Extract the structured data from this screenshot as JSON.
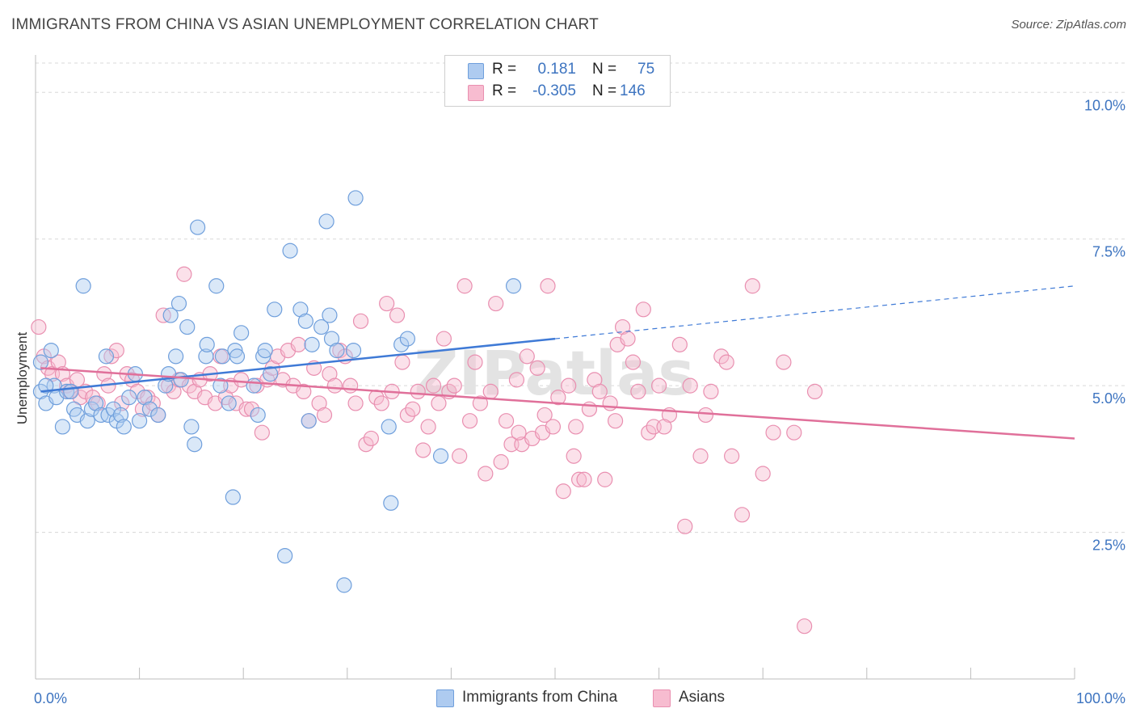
{
  "title": "IMMIGRANTS FROM CHINA VS ASIAN UNEMPLOYMENT CORRELATION CHART",
  "source": "Source: ZipAtlas.com",
  "watermark": "ZIPatlas",
  "legend": {
    "r_label": "R =",
    "n_label": "N =",
    "rows": [
      {
        "r": "0.181",
        "n": "75"
      },
      {
        "r": "-0.305",
        "n": "146"
      }
    ]
  },
  "colors": {
    "china_fill": "#aecbf0",
    "china_stroke": "#6f9fdc",
    "china_line": "#3f7ad6",
    "asian_fill": "#f7bcd0",
    "asian_stroke": "#e98fb0",
    "asian_line": "#e0709a",
    "grid": "#d8d8d8",
    "tick_label": "#3d74c0"
  },
  "chart_data": {
    "type": "scatter",
    "title": "IMMIGRANTS FROM CHINA VS ASIAN UNEMPLOYMENT CORRELATION CHART",
    "xlabel": "",
    "ylabel": "Unemployment",
    "xlim": [
      0,
      100
    ],
    "ylim": [
      0,
      10.5
    ],
    "x_tick_labels": [
      "0.0%",
      "100.0%"
    ],
    "y_ticks": [
      2.5,
      5.0,
      7.5,
      10.0
    ],
    "y_tick_labels": [
      "2.5%",
      "5.0%",
      "7.5%",
      "10.0%"
    ],
    "grid": "horizontal dashed",
    "legend_position": "bottom",
    "series": [
      {
        "name": "Immigrants from China",
        "trend": {
          "x0": 0.5,
          "y0": 4.9,
          "x1": 50,
          "y1": 5.8,
          "dashed_to_x": 100,
          "dashed_to_y": 6.7
        },
        "points": [
          [
            0.5,
            5.4
          ],
          [
            0.5,
            4.9
          ],
          [
            1.0,
            4.7
          ],
          [
            1.5,
            5.6
          ],
          [
            1.8,
            5.0
          ],
          [
            2.0,
            4.8
          ],
          [
            2.6,
            4.3
          ],
          [
            3.0,
            4.9
          ],
          [
            3.4,
            4.9
          ],
          [
            3.7,
            4.6
          ],
          [
            4.0,
            4.5
          ],
          [
            4.6,
            6.7
          ],
          [
            5.0,
            4.4
          ],
          [
            5.4,
            4.6
          ],
          [
            5.8,
            4.7
          ],
          [
            6.3,
            4.5
          ],
          [
            6.8,
            5.5
          ],
          [
            7.0,
            4.5
          ],
          [
            7.5,
            4.6
          ],
          [
            7.8,
            4.4
          ],
          [
            8.2,
            4.5
          ],
          [
            8.5,
            4.3
          ],
          [
            9.0,
            4.8
          ],
          [
            9.6,
            5.2
          ],
          [
            10.0,
            4.4
          ],
          [
            10.5,
            4.8
          ],
          [
            11.0,
            4.6
          ],
          [
            11.8,
            4.5
          ],
          [
            12.5,
            5.0
          ],
          [
            12.8,
            5.2
          ],
          [
            13.0,
            6.2
          ],
          [
            13.5,
            5.5
          ],
          [
            13.8,
            6.4
          ],
          [
            14.0,
            5.1
          ],
          [
            14.6,
            6.0
          ],
          [
            15.0,
            4.3
          ],
          [
            15.3,
            4.0
          ],
          [
            15.6,
            7.7
          ],
          [
            16.4,
            5.5
          ],
          [
            16.5,
            5.7
          ],
          [
            17.4,
            6.7
          ],
          [
            17.8,
            5.0
          ],
          [
            18.0,
            5.5
          ],
          [
            18.6,
            4.7
          ],
          [
            19.0,
            3.1
          ],
          [
            19.2,
            5.6
          ],
          [
            19.4,
            5.5
          ],
          [
            19.8,
            5.9
          ],
          [
            21.0,
            5.0
          ],
          [
            21.4,
            4.5
          ],
          [
            21.9,
            5.5
          ],
          [
            22.1,
            5.6
          ],
          [
            22.6,
            5.2
          ],
          [
            23.0,
            6.3
          ],
          [
            24.0,
            2.1
          ],
          [
            24.5,
            7.3
          ],
          [
            25.5,
            6.3
          ],
          [
            26.0,
            6.1
          ],
          [
            26.3,
            4.4
          ],
          [
            26.6,
            5.7
          ],
          [
            27.5,
            6.0
          ],
          [
            28.0,
            7.8
          ],
          [
            28.3,
            6.2
          ],
          [
            28.5,
            5.8
          ],
          [
            29.0,
            5.6
          ],
          [
            29.7,
            1.6
          ],
          [
            30.6,
            5.6
          ],
          [
            30.8,
            8.2
          ],
          [
            34.0,
            4.3
          ],
          [
            34.2,
            3.0
          ],
          [
            35.2,
            5.7
          ],
          [
            35.8,
            5.8
          ],
          [
            39.0,
            3.8
          ],
          [
            46.0,
            6.7
          ],
          [
            1.0,
            5.0
          ]
        ]
      },
      {
        "name": "Asians",
        "trend": {
          "x0": 0.5,
          "y0": 5.3,
          "x1": 100,
          "y1": 4.1
        },
        "points": [
          [
            0.3,
            6.0
          ],
          [
            0.8,
            5.5
          ],
          [
            1.2,
            5.3
          ],
          [
            1.6,
            5.2
          ],
          [
            2.2,
            5.4
          ],
          [
            2.6,
            5.2
          ],
          [
            3.0,
            5.0
          ],
          [
            3.3,
            4.9
          ],
          [
            4.0,
            5.1
          ],
          [
            4.3,
            4.8
          ],
          [
            4.8,
            4.9
          ],
          [
            5.5,
            4.8
          ],
          [
            6.0,
            4.7
          ],
          [
            6.6,
            5.2
          ],
          [
            7.0,
            5.0
          ],
          [
            7.3,
            5.5
          ],
          [
            7.8,
            5.6
          ],
          [
            8.3,
            4.7
          ],
          [
            8.8,
            5.2
          ],
          [
            9.3,
            5.1
          ],
          [
            9.8,
            4.9
          ],
          [
            10.3,
            4.6
          ],
          [
            10.8,
            4.8
          ],
          [
            11.3,
            4.7
          ],
          [
            11.8,
            4.5
          ],
          [
            12.3,
            6.2
          ],
          [
            12.8,
            5.0
          ],
          [
            13.3,
            4.9
          ],
          [
            13.8,
            5.1
          ],
          [
            14.3,
            6.9
          ],
          [
            14.8,
            5.0
          ],
          [
            15.3,
            4.9
          ],
          [
            15.8,
            5.1
          ],
          [
            16.3,
            4.8
          ],
          [
            16.8,
            5.2
          ],
          [
            17.3,
            4.7
          ],
          [
            17.8,
            5.5
          ],
          [
            18.3,
            4.8
          ],
          [
            18.8,
            5.0
          ],
          [
            19.3,
            4.7
          ],
          [
            19.8,
            5.1
          ],
          [
            20.3,
            4.6
          ],
          [
            20.8,
            4.6
          ],
          [
            21.3,
            5.0
          ],
          [
            21.8,
            4.2
          ],
          [
            22.3,
            5.1
          ],
          [
            22.8,
            5.3
          ],
          [
            23.3,
            5.5
          ],
          [
            23.8,
            5.1
          ],
          [
            24.3,
            5.6
          ],
          [
            24.8,
            5.0
          ],
          [
            25.3,
            5.7
          ],
          [
            25.8,
            4.9
          ],
          [
            26.3,
            4.4
          ],
          [
            26.8,
            5.3
          ],
          [
            27.3,
            4.7
          ],
          [
            27.8,
            4.5
          ],
          [
            28.3,
            5.2
          ],
          [
            28.8,
            5.0
          ],
          [
            29.3,
            5.6
          ],
          [
            29.8,
            5.5
          ],
          [
            30.3,
            5.0
          ],
          [
            30.8,
            4.7
          ],
          [
            31.3,
            6.1
          ],
          [
            31.8,
            4.0
          ],
          [
            32.3,
            4.1
          ],
          [
            32.8,
            4.8
          ],
          [
            33.3,
            4.7
          ],
          [
            33.8,
            6.4
          ],
          [
            34.3,
            4.9
          ],
          [
            34.8,
            6.2
          ],
          [
            35.3,
            5.4
          ],
          [
            35.8,
            4.5
          ],
          [
            36.3,
            4.6
          ],
          [
            36.8,
            4.9
          ],
          [
            37.3,
            3.9
          ],
          [
            37.8,
            4.3
          ],
          [
            38.3,
            5.0
          ],
          [
            38.8,
            4.7
          ],
          [
            39.3,
            5.8
          ],
          [
            39.8,
            4.9
          ],
          [
            40.3,
            5.0
          ],
          [
            40.8,
            3.8
          ],
          [
            41.3,
            6.7
          ],
          [
            41.8,
            4.4
          ],
          [
            42.3,
            5.4
          ],
          [
            42.8,
            4.7
          ],
          [
            43.3,
            3.5
          ],
          [
            43.8,
            4.9
          ],
          [
            44.3,
            6.4
          ],
          [
            44.8,
            3.7
          ],
          [
            45.3,
            4.4
          ],
          [
            45.8,
            4.0
          ],
          [
            46.3,
            5.1
          ],
          [
            46.8,
            4.0
          ],
          [
            47.3,
            5.5
          ],
          [
            47.8,
            4.1
          ],
          [
            48.3,
            5.3
          ],
          [
            48.8,
            4.2
          ],
          [
            49.3,
            6.7
          ],
          [
            49.8,
            4.3
          ],
          [
            50.3,
            4.8
          ],
          [
            50.8,
            3.2
          ],
          [
            51.3,
            5.0
          ],
          [
            51.8,
            3.8
          ],
          [
            52.3,
            3.4
          ],
          [
            52.8,
            3.4
          ],
          [
            53.3,
            4.6
          ],
          [
            53.8,
            5.1
          ],
          [
            54.3,
            4.9
          ],
          [
            54.8,
            3.4
          ],
          [
            55.3,
            4.7
          ],
          [
            56.0,
            5.7
          ],
          [
            56.5,
            6.0
          ],
          [
            57.0,
            5.8
          ],
          [
            57.5,
            5.4
          ],
          [
            58.0,
            4.9
          ],
          [
            58.5,
            6.3
          ],
          [
            59.0,
            4.2
          ],
          [
            59.5,
            4.3
          ],
          [
            60.0,
            5.0
          ],
          [
            61.0,
            4.5
          ],
          [
            62.0,
            5.7
          ],
          [
            63.0,
            5.0
          ],
          [
            64.0,
            3.8
          ],
          [
            65.0,
            4.9
          ],
          [
            66.0,
            5.5
          ],
          [
            67.0,
            3.8
          ],
          [
            68.0,
            2.8
          ],
          [
            69.0,
            6.7
          ],
          [
            70.0,
            3.5
          ],
          [
            71.0,
            4.2
          ],
          [
            72.0,
            5.4
          ],
          [
            73.0,
            4.2
          ],
          [
            74.0,
            0.9
          ],
          [
            75.0,
            4.9
          ],
          [
            62.5,
            2.6
          ],
          [
            64.5,
            4.5
          ],
          [
            66.5,
            5.4
          ],
          [
            60.5,
            4.3
          ],
          [
            55.8,
            4.4
          ],
          [
            52.0,
            4.3
          ],
          [
            49.0,
            4.5
          ],
          [
            46.5,
            4.2
          ]
        ]
      }
    ]
  },
  "bottom_legend": [
    {
      "label": "Immigrants from China"
    },
    {
      "label": "Asians"
    }
  ]
}
